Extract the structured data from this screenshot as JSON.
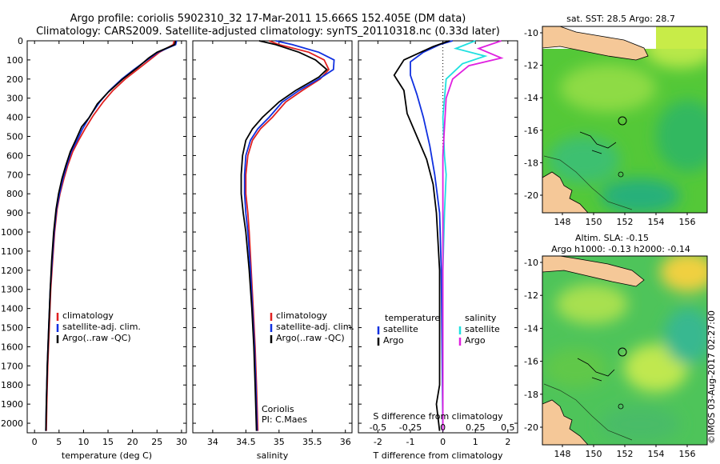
{
  "header": {
    "title_line1": "Argo profile: coriolis 5902310_32 17-Mar-2011 15.666S 152.405E (DM data)",
    "title_line2": "Climatology: CARS2009. Satellite-adjusted climatology: synTS_20110318.nc (0.33d later)"
  },
  "colors": {
    "climatology": "#e02020",
    "satellite": "#1030e0",
    "argo": "#000000",
    "sat_t": "#1030e0",
    "sat_s": "#20e0e0",
    "argo_s": "#e020e0"
  },
  "depth_axis": {
    "ylim": [
      0,
      2050
    ],
    "ticks": [
      0,
      100,
      200,
      300,
      400,
      500,
      600,
      700,
      800,
      900,
      1000,
      1100,
      1200,
      1300,
      1400,
      1500,
      1600,
      1700,
      1800,
      1900,
      2000
    ]
  },
  "chart_data": [
    {
      "id": "temperature",
      "type": "line",
      "xlabel": "temperature (deg C)",
      "xlim": [
        -1.5,
        31
      ],
      "xticks": [
        0,
        5,
        10,
        15,
        20,
        25,
        30
      ],
      "legend": [
        "climatology",
        "satellite-adj. clim.",
        "Argo(..raw -QC)"
      ],
      "series": [
        {
          "name": "climatology",
          "color": "#e02020",
          "points": [
            [
              28.5,
              0
            ],
            [
              28.3,
              20
            ],
            [
              25.5,
              60
            ],
            [
              23.5,
              100
            ],
            [
              21.0,
              150
            ],
            [
              18.5,
              200
            ],
            [
              16.0,
              260
            ],
            [
              14.0,
              320
            ],
            [
              12.0,
              390
            ],
            [
              10.3,
              460
            ],
            [
              9.0,
              520
            ],
            [
              7.8,
              580
            ],
            [
              6.8,
              650
            ],
            [
              6.0,
              720
            ],
            [
              5.2,
              800
            ],
            [
              4.6,
              880
            ],
            [
              4.1,
              1000
            ],
            [
              3.7,
              1150
            ],
            [
              3.3,
              1300
            ],
            [
              3.0,
              1500
            ],
            [
              2.7,
              1700
            ],
            [
              2.5,
              1900
            ],
            [
              2.4,
              2040
            ]
          ]
        },
        {
          "name": "satellite-adj. clim.",
          "color": "#1030e0",
          "points": [
            [
              29.0,
              0
            ],
            [
              28.8,
              20
            ],
            [
              25.2,
              60
            ],
            [
              23.0,
              100
            ],
            [
              20.3,
              150
            ],
            [
              17.8,
              200
            ],
            [
              15.3,
              260
            ],
            [
              13.3,
              320
            ],
            [
              11.4,
              390
            ],
            [
              9.8,
              460
            ],
            [
              8.7,
              520
            ],
            [
              7.5,
              580
            ],
            [
              6.6,
              650
            ],
            [
              5.8,
              720
            ],
            [
              5.1,
              800
            ],
            [
              4.5,
              880
            ],
            [
              4.0,
              1000
            ],
            [
              3.6,
              1150
            ],
            [
              3.2,
              1300
            ],
            [
              2.9,
              1500
            ],
            [
              2.6,
              1700
            ],
            [
              2.4,
              1900
            ],
            [
              2.3,
              2040
            ]
          ]
        },
        {
          "name": "Argo(..raw -QC)",
          "color": "#000000",
          "points": [
            [
              28.8,
              0
            ],
            [
              28.6,
              20
            ],
            [
              25.0,
              60
            ],
            [
              23.3,
              90
            ],
            [
              21.0,
              140
            ],
            [
              18.0,
              200
            ],
            [
              15.0,
              270
            ],
            [
              12.8,
              330
            ],
            [
              11.2,
              400
            ],
            [
              9.6,
              450
            ],
            [
              8.4,
              520
            ],
            [
              7.3,
              580
            ],
            [
              6.4,
              650
            ],
            [
              5.6,
              720
            ],
            [
              4.9,
              800
            ],
            [
              4.4,
              880
            ],
            [
              3.9,
              1000
            ],
            [
              3.5,
              1150
            ],
            [
              3.2,
              1300
            ],
            [
              2.9,
              1500
            ],
            [
              2.6,
              1700
            ],
            [
              2.4,
              1900
            ],
            [
              2.3,
              2040
            ]
          ]
        }
      ]
    },
    {
      "id": "salinity",
      "type": "line",
      "xlabel": "salinity",
      "xlim": [
        33.7,
        36.1
      ],
      "xticks": [
        34,
        34.5,
        35,
        35.5,
        36
      ],
      "legend": [
        "climatology",
        "satellite-adj. clim.",
        "Argo(..raw -QC)"
      ],
      "note": [
        "Coriolis",
        "PI: C.Maes"
      ],
      "series": [
        {
          "name": "climatology",
          "color": "#e02020",
          "points": [
            [
              34.85,
              0
            ],
            [
              35.0,
              20
            ],
            [
              35.45,
              60
            ],
            [
              35.68,
              100
            ],
            [
              35.75,
              150
            ],
            [
              35.62,
              200
            ],
            [
              35.35,
              260
            ],
            [
              35.1,
              320
            ],
            [
              34.9,
              400
            ],
            [
              34.72,
              460
            ],
            [
              34.6,
              520
            ],
            [
              34.53,
              600
            ],
            [
              34.5,
              700
            ],
            [
              34.5,
              800
            ],
            [
              34.53,
              900
            ],
            [
              34.55,
              1000
            ],
            [
              34.58,
              1200
            ],
            [
              34.61,
              1400
            ],
            [
              34.64,
              1600
            ],
            [
              34.66,
              1800
            ],
            [
              34.68,
              2040
            ]
          ]
        },
        {
          "name": "satellite-adj. clim.",
          "color": "#1030e0",
          "points": [
            [
              34.95,
              0
            ],
            [
              35.2,
              20
            ],
            [
              35.6,
              60
            ],
            [
              35.83,
              100
            ],
            [
              35.82,
              150
            ],
            [
              35.6,
              200
            ],
            [
              35.3,
              260
            ],
            [
              35.05,
              320
            ],
            [
              34.85,
              400
            ],
            [
              34.68,
              460
            ],
            [
              34.57,
              520
            ],
            [
              34.5,
              600
            ],
            [
              34.48,
              700
            ],
            [
              34.48,
              800
            ],
            [
              34.5,
              900
            ],
            [
              34.53,
              1000
            ],
            [
              34.57,
              1200
            ],
            [
              34.6,
              1400
            ],
            [
              34.63,
              1600
            ],
            [
              34.65,
              1800
            ],
            [
              34.67,
              2040
            ]
          ]
        },
        {
          "name": "Argo(..raw -QC)",
          "color": "#000000",
          "points": [
            [
              34.7,
              0
            ],
            [
              34.95,
              20
            ],
            [
              35.3,
              60
            ],
            [
              35.55,
              100
            ],
            [
              35.72,
              150
            ],
            [
              35.6,
              190
            ],
            [
              35.25,
              260
            ],
            [
              35.0,
              320
            ],
            [
              34.75,
              400
            ],
            [
              34.6,
              460
            ],
            [
              34.5,
              520
            ],
            [
              34.45,
              600
            ],
            [
              34.43,
              700
            ],
            [
              34.43,
              800
            ],
            [
              34.46,
              900
            ],
            [
              34.5,
              1000
            ],
            [
              34.55,
              1200
            ],
            [
              34.59,
              1400
            ],
            [
              34.62,
              1600
            ],
            [
              34.64,
              1800
            ],
            [
              34.66,
              2040
            ]
          ]
        }
      ]
    },
    {
      "id": "difference",
      "type": "line",
      "xlabel": "T difference from climatology",
      "xlabel_top": "S difference from climatology",
      "xlim": [
        -2.6,
        2.3
      ],
      "xticks": [
        -2,
        -1,
        0,
        1,
        2
      ],
      "s_ticks": [
        "-0.5",
        "-0.25",
        "0",
        "0.25",
        "0.5"
      ],
      "legend_t": [
        "temperature",
        "satellite",
        "Argo"
      ],
      "legend_s": [
        "salinity",
        "satellite",
        "Argo"
      ],
      "series": [
        {
          "name": "temperature satellite",
          "color": "#1030e0",
          "points": [
            [
              0.3,
              0
            ],
            [
              -0.1,
              20
            ],
            [
              -0.6,
              60
            ],
            [
              -1.0,
              110
            ],
            [
              -1.0,
              180
            ],
            [
              -0.8,
              280
            ],
            [
              -0.6,
              400
            ],
            [
              -0.4,
              550
            ],
            [
              -0.25,
              700
            ],
            [
              -0.1,
              900
            ],
            [
              -0.05,
              1200
            ],
            [
              0,
              2040
            ]
          ]
        },
        {
          "name": "temperature Argo",
          "color": "#000000",
          "points": [
            [
              0.2,
              0
            ],
            [
              -0.3,
              30
            ],
            [
              -1.2,
              100
            ],
            [
              -1.5,
              180
            ],
            [
              -1.2,
              260
            ],
            [
              -1.1,
              380
            ],
            [
              -0.8,
              500
            ],
            [
              -0.5,
              620
            ],
            [
              -0.3,
              750
            ],
            [
              -0.2,
              900
            ],
            [
              -0.1,
              1200
            ],
            [
              -0.1,
              1800
            ],
            [
              -0.2,
              1900
            ],
            [
              -0.1,
              2040
            ]
          ]
        },
        {
          "name": "salinity satellite",
          "color": "#20e0e0",
          "points": [
            [
              1.0,
              0
            ],
            [
              0.4,
              40
            ],
            [
              1.3,
              80
            ],
            [
              0.6,
              120
            ],
            [
              0.1,
              200
            ],
            [
              0.0,
              400
            ],
            [
              0.05,
              600
            ],
            [
              0.1,
              700
            ],
            [
              0.05,
              900
            ],
            [
              0.0,
              1200
            ],
            [
              0,
              2040
            ]
          ]
        },
        {
          "name": "salinity Argo",
          "color": "#e020e0",
          "points": [
            [
              1.8,
              0
            ],
            [
              1.1,
              40
            ],
            [
              1.8,
              90
            ],
            [
              0.8,
              130
            ],
            [
              0.3,
              200
            ],
            [
              0.1,
              300
            ],
            [
              0.05,
              450
            ],
            [
              0,
              600
            ],
            [
              0,
              800
            ],
            [
              0,
              2040
            ]
          ]
        }
      ]
    }
  ],
  "maps": {
    "top": {
      "title": "sat. SST: 28.5 Argo: 28.7",
      "yticks": [
        "-10",
        "-12",
        "-14",
        "-16",
        "-18",
        "-20"
      ],
      "xticks": [
        "148",
        "150",
        "152",
        "154",
        "156"
      ]
    },
    "bottom": {
      "title_line1": "Altim. SLA: -0.15",
      "title_line2": "Argo h1000: -0.13 h2000: -0.14",
      "yticks": [
        "-10",
        "-12",
        "-14",
        "-16",
        "-18",
        "-20"
      ],
      "xticks": [
        "148",
        "150",
        "152",
        "154",
        "156"
      ]
    },
    "credit": "©IMOS 03-Aug-2017 02:27:00"
  }
}
